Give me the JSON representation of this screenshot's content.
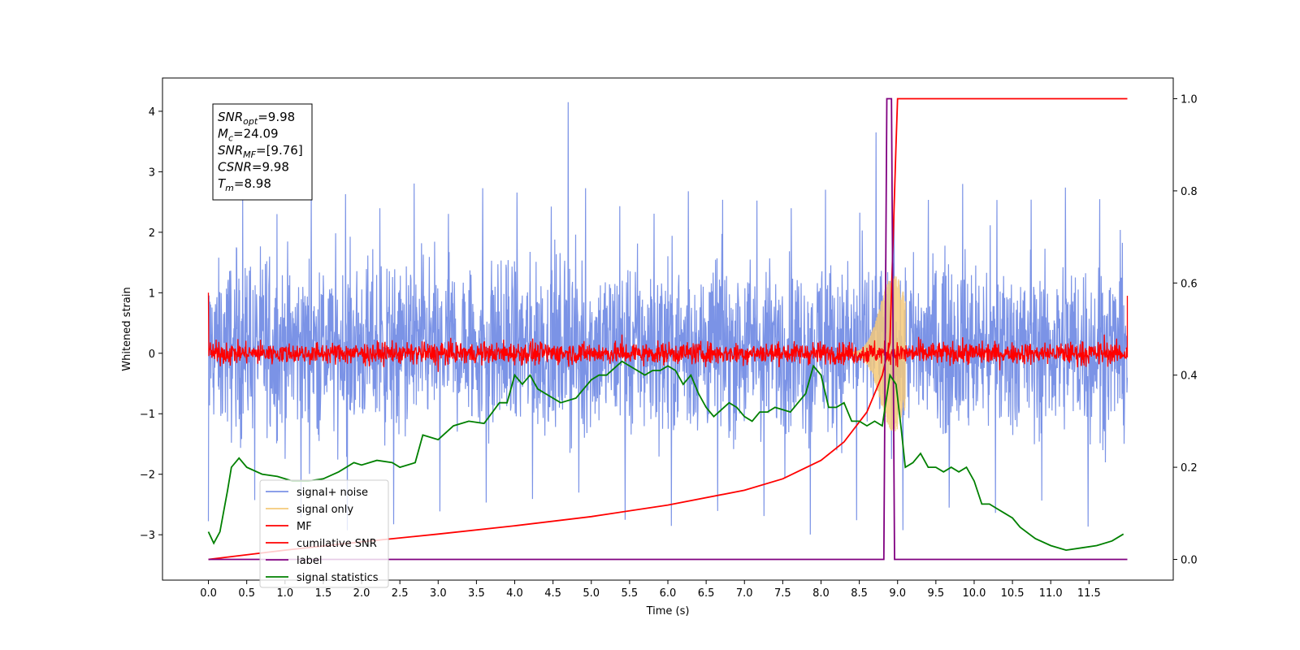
{
  "chart_data": {
    "type": "line",
    "title": "",
    "xlabel": "Time (s)",
    "ylabel": "Whitened strain",
    "xlim": [
      -0.6,
      12.6
    ],
    "ylim": [
      -3.75,
      4.55
    ],
    "y2lim": [
      -0.045,
      1.045
    ],
    "xticks": [
      "0.0",
      "0.5",
      "1.0",
      "1.5",
      "2.0",
      "2.5",
      "3.0",
      "3.5",
      "4.0",
      "4.5",
      "5.0",
      "5.5",
      "6.0",
      "6.5",
      "7.0",
      "7.5",
      "8.0",
      "8.5",
      "9.0",
      "9.5",
      "10.0",
      "10.5",
      "11.0",
      "11.5"
    ],
    "yticks": [
      "4",
      "3",
      "2",
      "1",
      "0",
      "−1",
      "−2",
      "−3"
    ],
    "y2ticks": [
      "1.0",
      "0.8",
      "0.6",
      "0.4",
      "0.2",
      "0.0"
    ],
    "grid": false,
    "legend_position": "lower-left",
    "annotation_box": {
      "lines": [
        {
          "sym": "SNR",
          "sub": "opt",
          "val": "=9.98"
        },
        {
          "sym": "M",
          "sub": "c",
          "val": "=24.09"
        },
        {
          "sym": "SNR",
          "sub": "MF",
          "val": "=[9.76]"
        },
        {
          "sym": "CSNR",
          "sub": "",
          "val": "=9.98"
        },
        {
          "sym": "T",
          "sub": "m",
          "val": "=8.98"
        }
      ]
    },
    "series": [
      {
        "name": "signal+ noise",
        "color": "#7b93e6",
        "axis": "left",
        "note": "noise band approx between -2.3 and 2.5, peak 4.15 near t=4.7"
      },
      {
        "name": "signal only",
        "color": "#f5c97a",
        "axis": "left",
        "note": "chirp envelope growing to ~1.3 near t=8.95"
      },
      {
        "name": "MF",
        "color": "#ff0000",
        "axis": "left",
        "note": "filtered trace around 0 with ±0.3 fluctuations"
      },
      {
        "name": "cumilative SNR",
        "color": "#ff0000",
        "axis": "right",
        "x": [
          0.0,
          1.0,
          2.0,
          3.0,
          4.0,
          5.0,
          6.0,
          7.0,
          7.5,
          8.0,
          8.3,
          8.6,
          8.8,
          8.9,
          8.98,
          9.0,
          12.0
        ],
        "y": [
          0.0,
          0.02,
          0.038,
          0.055,
          0.073,
          0.093,
          0.118,
          0.15,
          0.175,
          0.215,
          0.255,
          0.32,
          0.4,
          0.47,
          0.9,
          1.0,
          1.0
        ]
      },
      {
        "name": "label",
        "color": "#800080",
        "axis": "right",
        "x": [
          0.0,
          8.82,
          8.86,
          8.92,
          8.96,
          12.0
        ],
        "y": [
          0.0,
          0.0,
          1.0,
          1.0,
          0.0,
          0.0
        ]
      },
      {
        "name": "signal statistics",
        "color": "#008000",
        "axis": "right",
        "x": [
          0.0,
          0.07,
          0.15,
          0.25,
          0.3,
          0.4,
          0.5,
          0.7,
          0.9,
          1.1,
          1.3,
          1.5,
          1.7,
          1.9,
          2.0,
          2.2,
          2.4,
          2.5,
          2.7,
          2.8,
          3.0,
          3.2,
          3.4,
          3.6,
          3.8,
          3.9,
          4.0,
          4.1,
          4.2,
          4.3,
          4.4,
          4.5,
          4.6,
          4.8,
          5.0,
          5.1,
          5.2,
          5.4,
          5.5,
          5.6,
          5.7,
          5.8,
          5.9,
          6.0,
          6.1,
          6.2,
          6.3,
          6.4,
          6.5,
          6.6,
          6.8,
          6.9,
          7.0,
          7.1,
          7.2,
          7.3,
          7.4,
          7.6,
          7.7,
          7.8,
          7.9,
          8.0,
          8.1,
          8.2,
          8.3,
          8.4,
          8.5,
          8.6,
          8.7,
          8.8,
          8.9,
          8.98,
          9.05,
          9.1,
          9.2,
          9.3,
          9.4,
          9.5,
          9.6,
          9.7,
          9.8,
          9.9,
          10.0,
          10.1,
          10.2,
          10.3,
          10.4,
          10.5,
          10.6,
          10.8,
          11.0,
          11.2,
          11.4,
          11.6,
          11.8,
          11.95
        ],
        "y": [
          0.06,
          0.035,
          0.06,
          0.15,
          0.2,
          0.22,
          0.2,
          0.185,
          0.18,
          0.17,
          0.17,
          0.175,
          0.19,
          0.21,
          0.205,
          0.215,
          0.21,
          0.2,
          0.21,
          0.27,
          0.26,
          0.29,
          0.3,
          0.295,
          0.34,
          0.34,
          0.4,
          0.38,
          0.4,
          0.37,
          0.36,
          0.35,
          0.34,
          0.35,
          0.39,
          0.4,
          0.4,
          0.43,
          0.42,
          0.41,
          0.4,
          0.41,
          0.41,
          0.42,
          0.41,
          0.38,
          0.4,
          0.36,
          0.33,
          0.31,
          0.34,
          0.33,
          0.31,
          0.3,
          0.32,
          0.32,
          0.33,
          0.32,
          0.34,
          0.36,
          0.42,
          0.4,
          0.33,
          0.33,
          0.34,
          0.3,
          0.3,
          0.29,
          0.3,
          0.29,
          0.4,
          0.38,
          0.28,
          0.2,
          0.21,
          0.23,
          0.2,
          0.2,
          0.19,
          0.2,
          0.19,
          0.2,
          0.17,
          0.12,
          0.12,
          0.11,
          0.1,
          0.09,
          0.07,
          0.045,
          0.03,
          0.02,
          0.025,
          0.03,
          0.04,
          0.055
        ]
      }
    ]
  }
}
